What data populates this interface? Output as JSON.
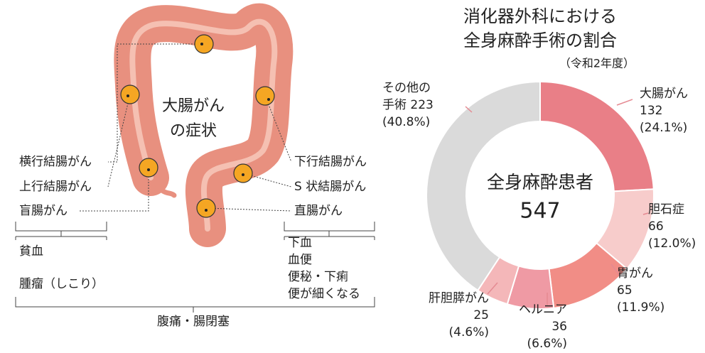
{
  "chart_data": {
    "type": "donut",
    "title": [
      "消化器外科における",
      "全身麻酔手術の割合"
    ],
    "subtitle": "（令和2年度）",
    "center_label": "全身麻酔患者",
    "total": 547,
    "categories": [
      "大腸がん",
      "胆石症",
      "胃がん",
      "ヘルニア",
      "肝胆膵がん",
      "その他の手術"
    ],
    "values": [
      132,
      66,
      65,
      36,
      25,
      223
    ],
    "percent_labels": [
      "(24.1%)",
      "(12.0%)",
      "(11.9%)",
      "(6.6%)",
      "(4.6%)",
      "(40.8%)"
    ],
    "colors": [
      "#e97f87",
      "#f7cccb",
      "#f18d86",
      "#ef9aa4",
      "#f4b7b9",
      "#dadada"
    ]
  },
  "diagram": {
    "title": [
      "大腸がん",
      "の症状"
    ],
    "sites_left": [
      "横行結腸がん",
      "上行結腸がん",
      "盲腸がん"
    ],
    "sites_right": [
      "下行結腸がん",
      "S 状結腸がん",
      "直腸がん"
    ],
    "symptoms_left": [
      "貧血",
      "腫瘤（しこり）"
    ],
    "symptoms_right": [
      "下血",
      "血便",
      "便秘・下痢",
      "便が細くなる"
    ],
    "symptoms_common": "腹痛・腸閉塞"
  }
}
